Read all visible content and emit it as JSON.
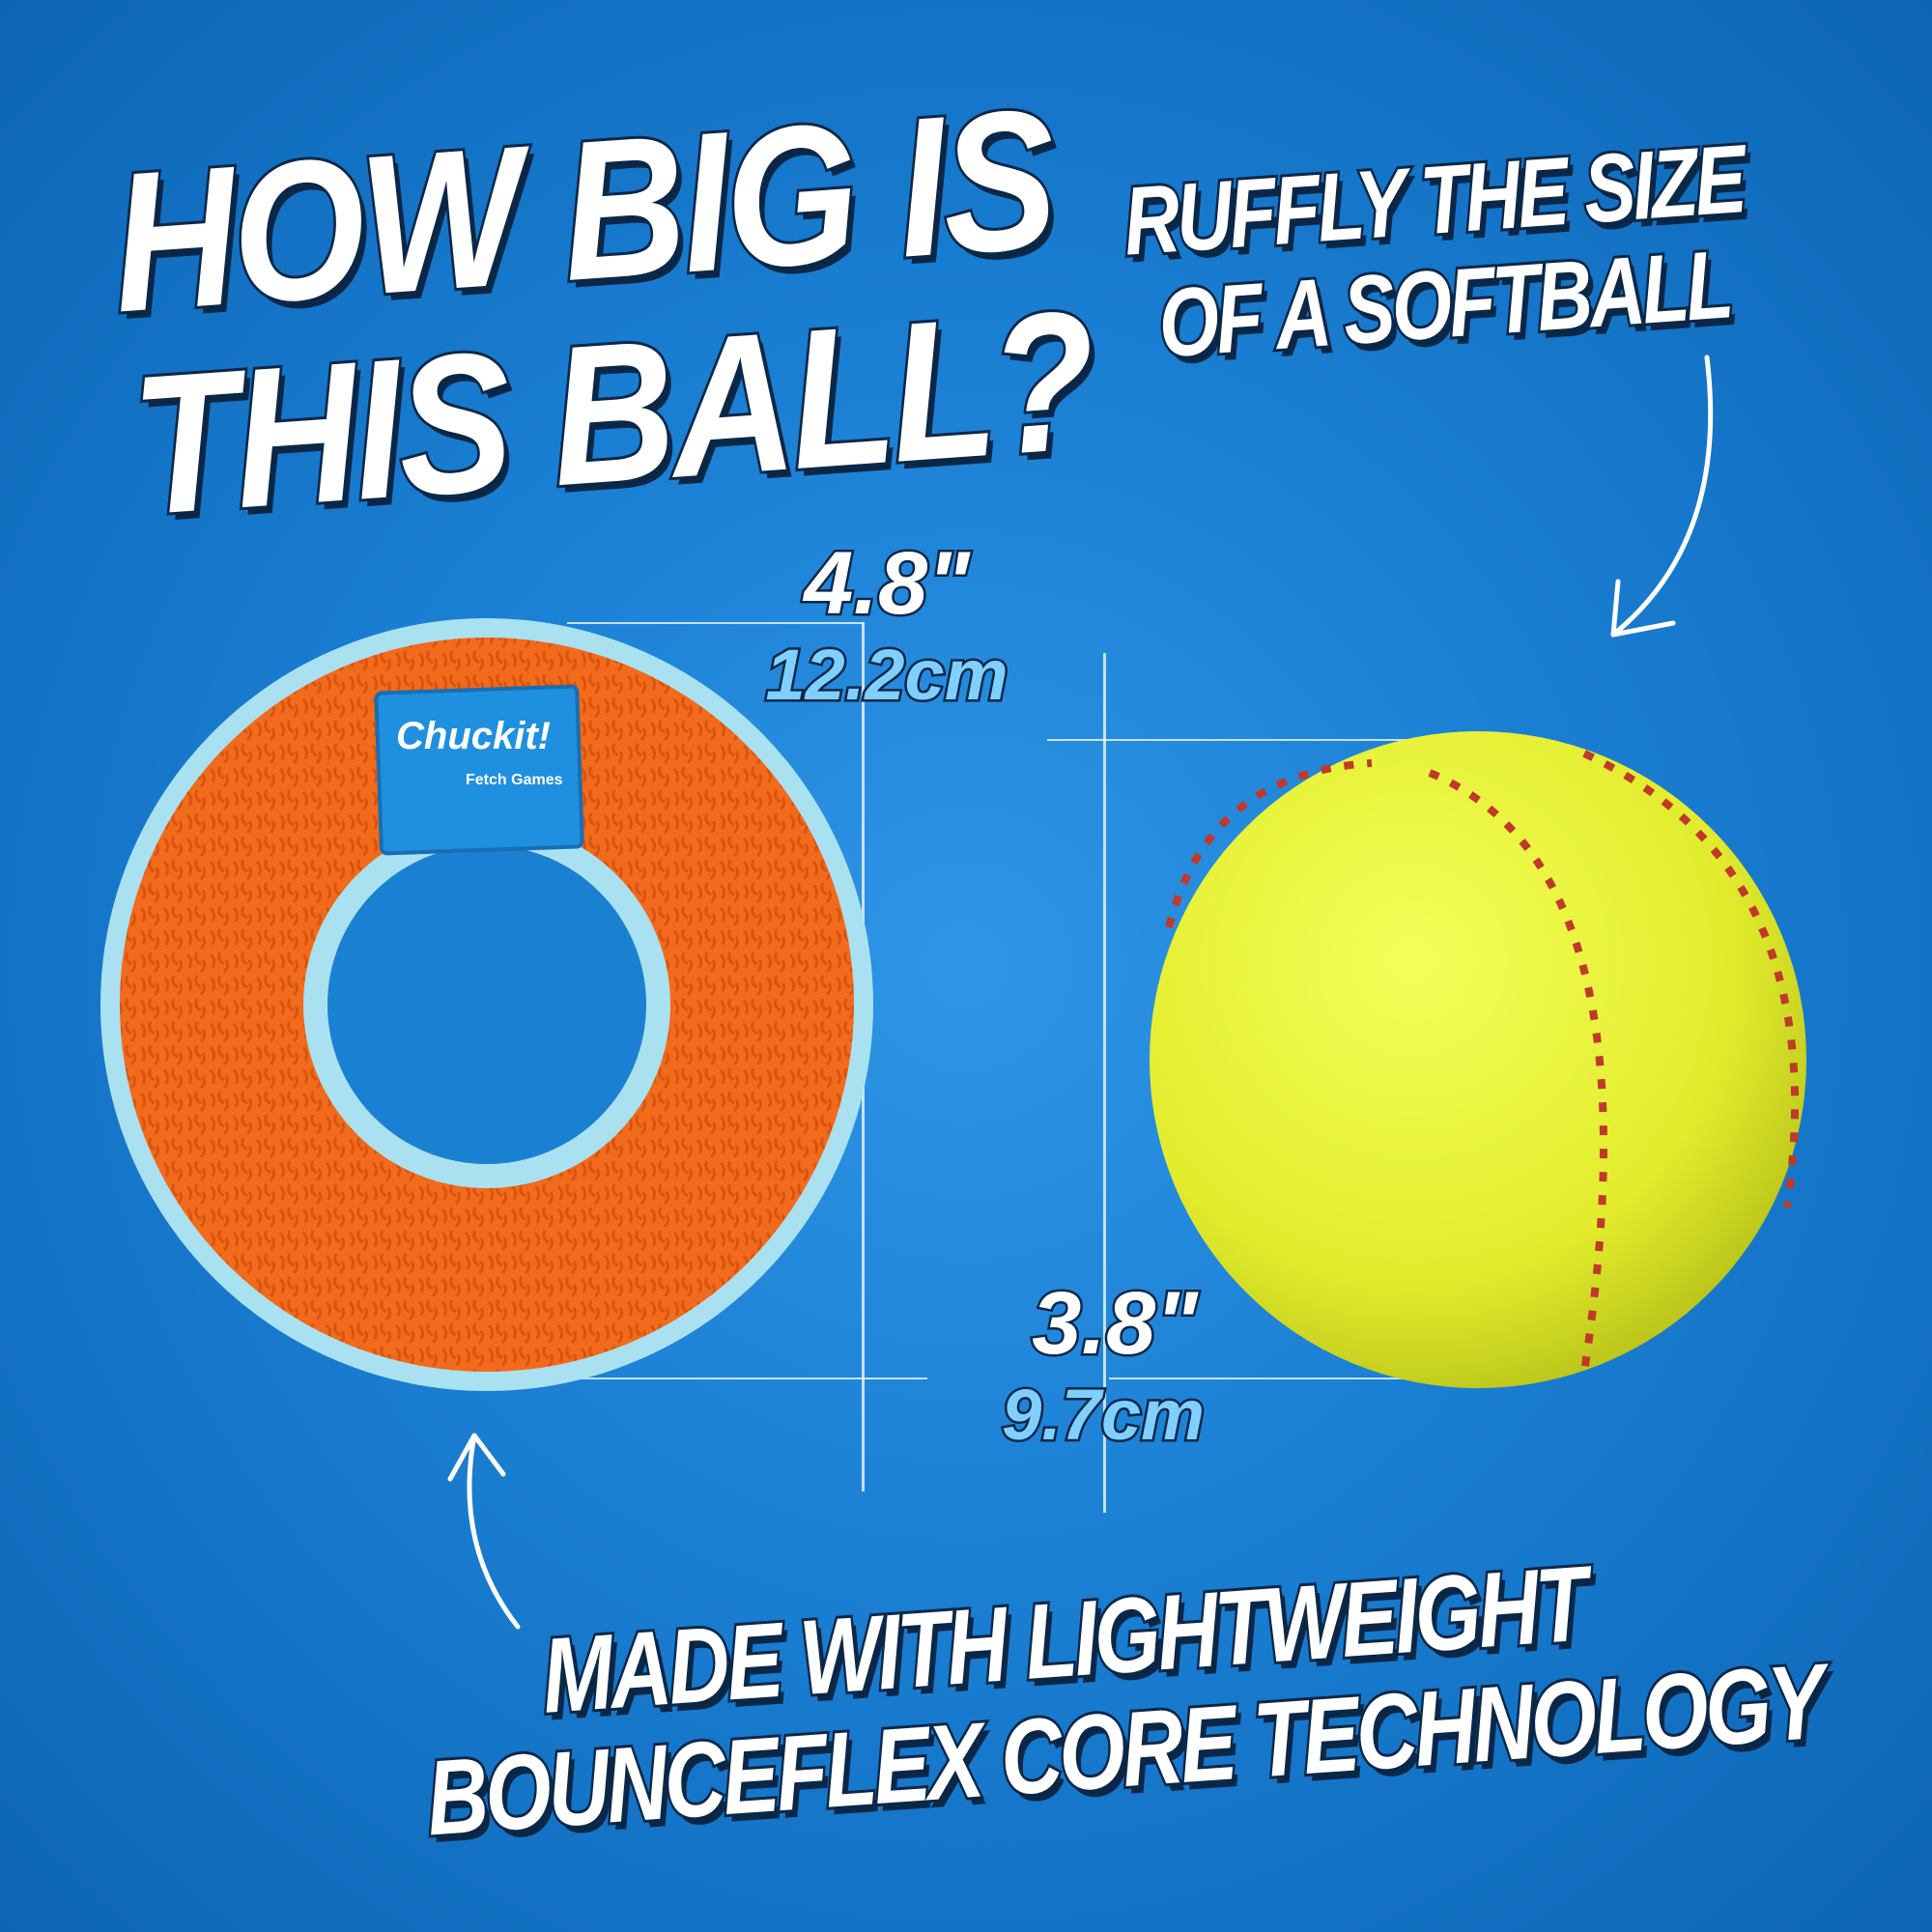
{
  "headline": {
    "line1": "HOW BIG IS",
    "line2": "THIS BALL?"
  },
  "callout": {
    "line1": "RUFFLY THE SIZE",
    "line2": "OF A SOFTBALL"
  },
  "ring_measure": {
    "inches": "4.8\"",
    "cm": "12.2cm"
  },
  "ball_measure": {
    "inches": "3.8\"",
    "cm": "9.7cm"
  },
  "footer": {
    "line1": "MADE WITH LIGHTWEIGHT",
    "line2": "BOUNCEFLEX CORE TECHNOLOGY"
  },
  "product_label": {
    "brand": "Chuckit!",
    "sub": "Fetch Games"
  },
  "colors": {
    "background": "#1a7fd3",
    "ring_orange": "#f26a1b",
    "ring_blue": "#a9e1f0",
    "softball": "#e6f03a",
    "stitch": "#c0392b",
    "text_stroke": "#0b2748",
    "cm_text": "#7fd0ff"
  }
}
